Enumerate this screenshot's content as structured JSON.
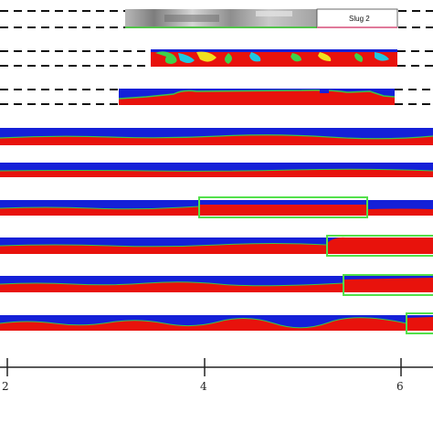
{
  "figure": {
    "image_label": "Slug 2",
    "axis_ticks": [
      "2",
      "4",
      "6"
    ],
    "colors": {
      "liquid": "#e8120c",
      "gas": "#1420d8",
      "interface": "#39c44a",
      "highlight_box": "#52e04a",
      "photo_gray": "#9a9a9a",
      "axis": "#222222"
    },
    "rows": [
      {
        "name": "photo-strip",
        "kind": "photo"
      },
      {
        "name": "sim-strip-1",
        "kind": "simulation"
      },
      {
        "name": "sim-strip-2",
        "kind": "simulation"
      },
      {
        "name": "pipe-row-1",
        "kind": "pipe"
      },
      {
        "name": "pipe-row-2",
        "kind": "pipe"
      },
      {
        "name": "pipe-row-3",
        "kind": "pipe"
      },
      {
        "name": "pipe-row-4",
        "kind": "pipe"
      },
      {
        "name": "pipe-row-5",
        "kind": "pipe"
      },
      {
        "name": "pipe-row-6",
        "kind": "pipe"
      }
    ]
  }
}
